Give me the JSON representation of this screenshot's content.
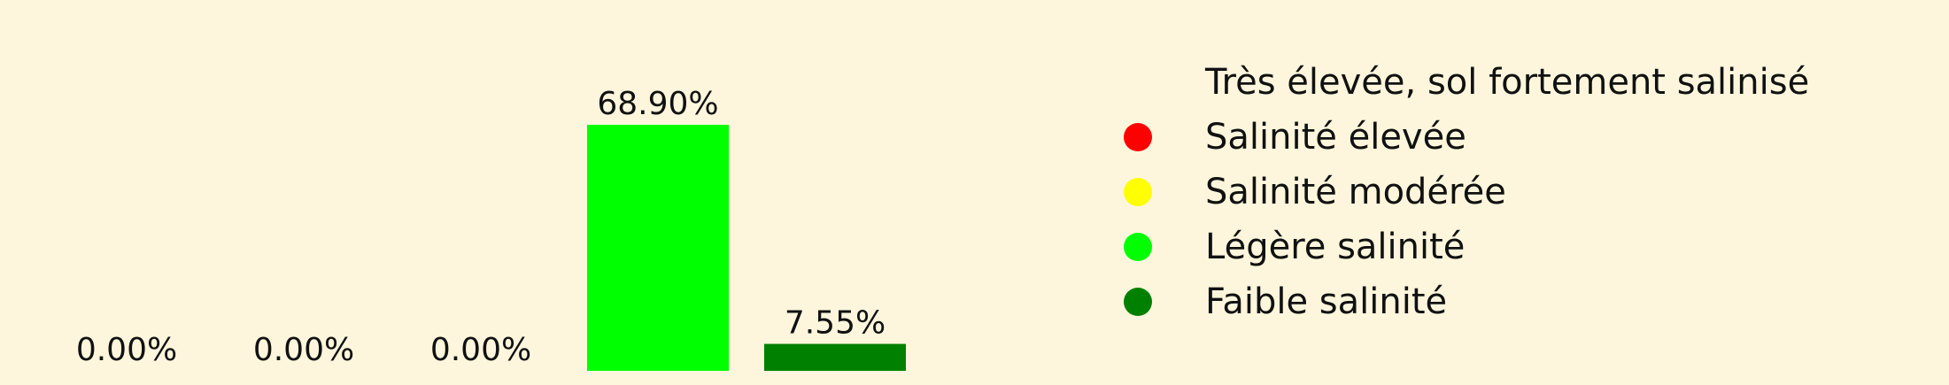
{
  "chart_data": {
    "type": "bar",
    "categories": [
      "Très élevée, sol fortement salinisé",
      "Salinité élevée",
      "Salinité modérée",
      "Légère salinité",
      "Faible salinité"
    ],
    "values": [
      0.0,
      0.0,
      0.0,
      68.9,
      7.55
    ],
    "value_labels": [
      "0.00%",
      "0.00%",
      "0.00%",
      "68.90%",
      "7.55%"
    ],
    "colors": [
      "#fdf6dc",
      "#ff0000",
      "#ffff00",
      "#00ff00",
      "#008000"
    ],
    "ylim": [
      0,
      68.9
    ],
    "legend": {
      "placement": "right",
      "entries": [
        {
          "label": "Très élevée, sol fortement salinisé",
          "color": "#fdf6dc"
        },
        {
          "label": "Salinité élevée",
          "color": "#ff0000"
        },
        {
          "label": "Salinité modérée",
          "color": "#ffff00"
        },
        {
          "label": "Légère salinité",
          "color": "#00ff00"
        },
        {
          "label": "Faible salinité",
          "color": "#008000"
        }
      ]
    },
    "grid": false,
    "axes_visible": false
  }
}
